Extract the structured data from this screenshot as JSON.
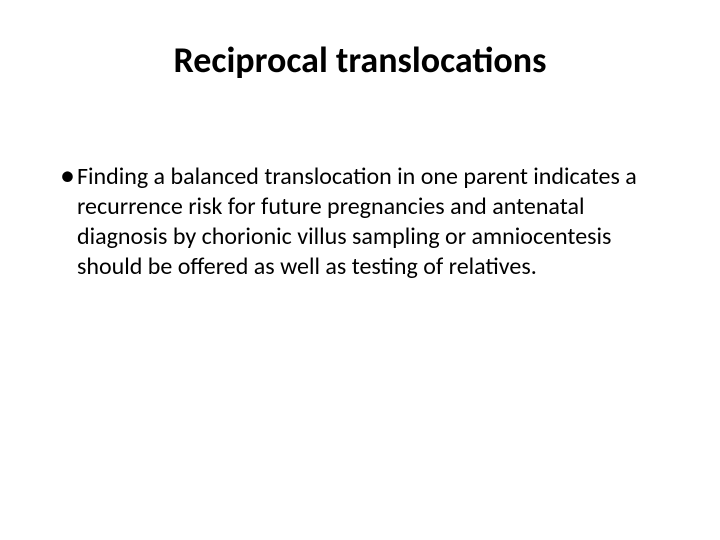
{
  "slide": {
    "title": "Reciprocal translocations",
    "bullet_text": "Finding a balanced translocation in one parent indicates a recurrence risk for future pregnancies and antenatal diagnosis by chorionic villus sampling or amniocentesis should be offered as well as testing of relatives.",
    "background_color": "#ffffff",
    "text_color": "#000000",
    "title_fontsize": 36,
    "body_fontsize": 24,
    "font_family": "Calibri"
  }
}
